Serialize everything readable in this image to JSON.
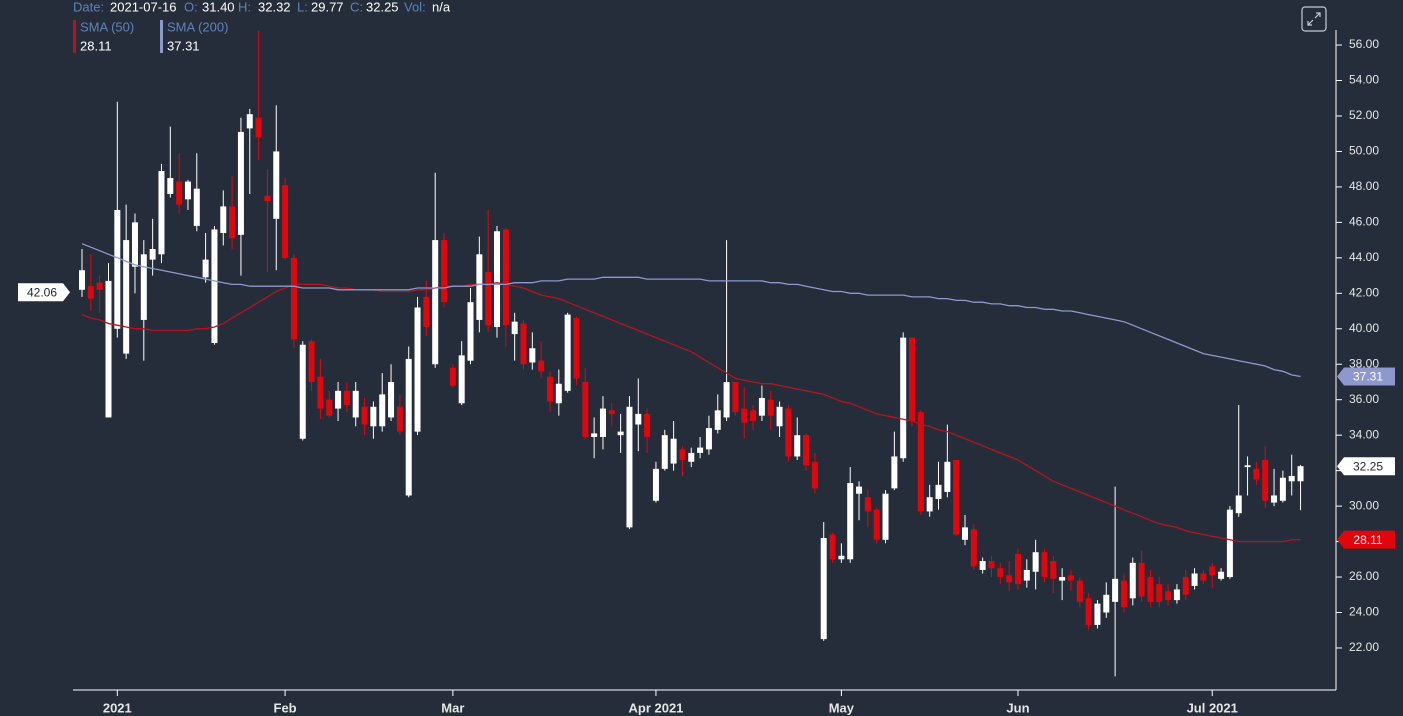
{
  "chart_data": {
    "type": "candlestick",
    "readout": {
      "date_label": "Date:",
      "date": "2021-07-16",
      "open_label": "O:",
      "open": "31.40",
      "high_label": "H:",
      "high": "32.32",
      "low_label": "L:",
      "low": "29.77",
      "close_label": "C:",
      "close": "32.25",
      "vol_label": "Vol:",
      "vol": "n/a"
    },
    "categories": [
      null,
      null,
      null,
      null,
      "2021",
      null,
      null,
      null,
      null,
      null,
      null,
      null,
      null,
      null,
      null,
      null,
      null,
      null,
      null,
      null,
      null,
      null,
      null,
      "Feb",
      null,
      null,
      null,
      null,
      null,
      null,
      null,
      null,
      null,
      null,
      null,
      null,
      null,
      null,
      null,
      null,
      null,
      null,
      "Mar",
      null,
      null,
      null,
      null,
      null,
      null,
      null,
      null,
      null,
      null,
      null,
      null,
      null,
      null,
      null,
      null,
      null,
      null,
      null,
      null,
      null,
      null,
      "Apr 2021",
      null,
      null,
      null,
      null,
      null,
      null,
      null,
      null,
      null,
      null,
      null,
      null,
      null,
      null,
      null,
      null,
      null,
      null,
      null,
      null,
      "May",
      null,
      null,
      null,
      null,
      null,
      null,
      null,
      null,
      null,
      null,
      null,
      null,
      null,
      null,
      null,
      null,
      null,
      null,
      null,
      "Jun",
      null,
      null,
      null,
      null,
      null,
      null,
      null,
      null,
      null,
      null,
      null,
      null,
      null,
      null,
      null,
      null,
      null,
      null,
      null,
      null,
      null,
      "Jul 2021",
      null,
      null,
      null,
      null,
      null,
      null,
      null,
      null,
      null,
      null
    ],
    "open": [
      42.2,
      42.4,
      42.6,
      35.0,
      40.0,
      38.6,
      43.5,
      40.5,
      43.9,
      44.2,
      47.6,
      48.3,
      47.3,
      45.8,
      42.9,
      39.2,
      45.4,
      46.9,
      45.3,
      51.3,
      51.9,
      47.5,
      46.2,
      48.1,
      44.0,
      33.8,
      39.3,
      37.3,
      36.0,
      35.5,
      36.5,
      35.0,
      35.6,
      34.5,
      34.5,
      35.0,
      35.6,
      30.6,
      34.2,
      41.8,
      38.0,
      45.0,
      37.8,
      35.8,
      38.2,
      40.5,
      43.2,
      40.1,
      45.6,
      39.7,
      40.3,
      38.1,
      38.2,
      37.3,
      35.8,
      36.5,
      40.6,
      37.0,
      33.9,
      33.9,
      35.4,
      34.0,
      28.8,
      34.6,
      35.2,
      30.3,
      32.1,
      32.4,
      33.2,
      32.5,
      33.0,
      33.2,
      34.3,
      35.0,
      37.0,
      35.5,
      35.4,
      35.1,
      36.0,
      34.5,
      35.5,
      32.8,
      34.0,
      32.5,
      22.5,
      28.4,
      27.0,
      27.0,
      30.7,
      30.5,
      29.8,
      28.1,
      31.0,
      32.7,
      39.5,
      35.3,
      29.7,
      30.4,
      30.8,
      32.6,
      28.1,
      28.7,
      26.4,
      26.9,
      26.5,
      26.1,
      27.3,
      25.8,
      26.3,
      27.4,
      26.9,
      25.8,
      26.1,
      25.8,
      24.8,
      23.3,
      24.0,
      24.6,
      25.8,
      24.8,
      26.8,
      26.0,
      25.6,
      25.2,
      24.7,
      26.0,
      25.5,
      26.2,
      26.6,
      25.9,
      26.0,
      29.6,
      32.2,
      32.1,
      32.6,
      30.2,
      30.3,
      31.4,
      31.4
    ],
    "high": [
      44.5,
      44.2,
      43.0,
      43.7,
      52.8,
      47.0,
      46.5,
      45.0,
      46.2,
      49.3,
      51.4,
      49.9,
      48.4,
      49.9,
      45.4,
      45.8,
      47.8,
      48.6,
      51.9,
      52.4,
      56.8,
      49.0,
      52.6,
      48.5,
      44.2,
      39.3,
      39.4,
      38.3,
      36.5,
      37.0,
      37.0,
      37.0,
      36.1,
      35.9,
      37.5,
      38.0,
      36.3,
      39.0,
      41.8,
      42.7,
      48.8,
      45.4,
      38.0,
      39.3,
      42.3,
      45.2,
      46.7,
      45.8,
      45.7,
      40.9,
      40.5,
      39.8,
      39.3,
      37.6,
      37.7,
      40.9,
      40.7,
      37.8,
      35.0,
      36.2,
      35.8,
      35.2,
      36.2,
      37.2,
      35.5,
      32.5,
      34.3,
      34.8,
      33.4,
      33.3,
      33.9,
      35.1,
      36.3,
      45.0,
      37.0,
      36.7,
      35.7,
      36.8,
      36.5,
      35.9,
      35.7,
      35.0,
      34.1,
      33.0,
      29.1,
      28.5,
      27.9,
      32.2,
      31.4,
      30.9,
      29.9,
      30.9,
      34.2,
      39.8,
      39.5,
      35.4,
      31.2,
      32.5,
      34.6,
      32.6,
      29.5,
      29.0,
      27.1,
      27.2,
      26.8,
      26.9,
      27.6,
      27.0,
      28.1,
      27.6,
      27.2,
      26.5,
      26.4,
      26.0,
      25.1,
      24.7,
      25.7,
      31.1,
      26.2,
      27.1,
      27.5,
      26.4,
      26.0,
      25.6,
      25.6,
      26.4,
      26.5,
      26.4,
      26.8,
      26.5,
      30.0,
      35.7,
      32.8,
      32.5,
      33.4,
      32.1,
      32.0,
      32.9,
      32.32
    ],
    "low": [
      41.8,
      41.0,
      40.9,
      35.0,
      39.5,
      38.3,
      42.0,
      38.2,
      43.0,
      43.7,
      47.4,
      46.5,
      46.7,
      45.5,
      42.6,
      39.1,
      44.7,
      44.5,
      43.0,
      47.6,
      49.5,
      43.2,
      43.3,
      43.9,
      38.9,
      33.7,
      36.5,
      34.9,
      35.0,
      34.8,
      35.3,
      34.5,
      34.0,
      33.8,
      34.2,
      34.8,
      34.0,
      30.5,
      34.0,
      39.6,
      37.8,
      41.2,
      36.7,
      35.7,
      38.0,
      39.8,
      39.8,
      39.5,
      39.0,
      38.2,
      37.7,
      37.7,
      37.2,
      35.3,
      35.1,
      36.4,
      36.8,
      33.8,
      32.7,
      33.2,
      34.5,
      33.0,
      28.7,
      33.1,
      33.0,
      30.2,
      32.0,
      32.0,
      31.7,
      32.2,
      32.7,
      32.9,
      34.1,
      34.8,
      35.1,
      33.8,
      34.3,
      34.8,
      34.3,
      33.9,
      32.5,
      32.6,
      32.0,
      30.7,
      22.4,
      26.8,
      26.8,
      26.8,
      29.2,
      28.8,
      27.9,
      27.9,
      30.9,
      32.5,
      34.5,
      29.5,
      29.4,
      29.8,
      30.5,
      28.3,
      27.8,
      26.4,
      26.2,
      26.0,
      25.6,
      25.2,
      25.3,
      25.4,
      25.3,
      25.7,
      25.1,
      24.7,
      25.2,
      24.3,
      23.0,
      23.1,
      23.7,
      20.4,
      24.0,
      24.4,
      24.6,
      24.3,
      24.3,
      24.4,
      24.5,
      24.7,
      25.3,
      25.6,
      25.4,
      25.8,
      25.9,
      29.4,
      30.6,
      31.2,
      29.9,
      30.0,
      30.2,
      30.6,
      29.77
    ],
    "close": [
      43.3,
      41.7,
      42.2,
      42.7,
      46.7,
      45.0,
      46.0,
      44.2,
      44.5,
      48.9,
      48.5,
      47.0,
      48.3,
      47.9,
      43.9,
      45.6,
      46.9,
      45.1,
      51.1,
      52.1,
      50.8,
      47.2,
      50.0,
      44.0,
      39.4,
      39.1,
      37.0,
      35.5,
      35.1,
      36.5,
      35.7,
      36.5,
      34.6,
      35.6,
      36.3,
      37.0,
      34.2,
      38.3,
      41.2,
      40.1,
      45.0,
      41.5,
      36.8,
      38.5,
      41.5,
      44.2,
      40.2,
      45.5,
      40.2,
      40.4,
      38.0,
      38.9,
      37.6,
      35.9,
      36.9,
      40.8,
      37.2,
      33.9,
      34.1,
      35.5,
      35.2,
      34.2,
      35.6,
      35.2,
      33.9,
      32.1,
      34.0,
      33.8,
      32.6,
      33.0,
      33.3,
      34.4,
      35.4,
      37.0,
      35.3,
      34.7,
      34.8,
      36.1,
      35.1,
      35.6,
      32.8,
      34.0,
      32.3,
      31.0,
      28.2,
      27.0,
      27.2,
      31.3,
      31.1,
      29.7,
      28.1,
      30.7,
      32.8,
      39.5,
      34.8,
      29.7,
      30.5,
      31.2,
      32.5,
      28.4,
      28.8,
      26.6,
      26.9,
      26.5,
      26.0,
      25.7,
      25.6,
      26.4,
      27.4,
      26.0,
      25.9,
      26.0,
      25.8,
      24.6,
      23.3,
      24.5,
      25.0,
      25.9,
      24.3,
      26.8,
      24.9,
      24.6,
      24.6,
      24.7,
      25.3,
      25.0,
      26.2,
      25.8,
      26.1,
      26.3,
      29.8,
      30.6,
      32.3,
      31.5,
      30.3,
      30.6,
      31.6,
      31.7,
      32.25
    ],
    "up_color": "#ffffff",
    "down_color": "#e0060e",
    "series": [
      {
        "name": "SMA (50)",
        "color": "#b5141c",
        "values": [
          40.8,
          40.6,
          40.5,
          40.3,
          40.2,
          40.1,
          40.0,
          40.0,
          39.9,
          39.9,
          39.9,
          39.9,
          39.9,
          40.0,
          40.0,
          40.1,
          40.3,
          40.6,
          40.9,
          41.2,
          41.5,
          41.8,
          42.1,
          42.3,
          42.5,
          42.5,
          42.5,
          42.5,
          42.4,
          42.3,
          42.3,
          42.2,
          42.2,
          42.2,
          42.1,
          42.1,
          42.1,
          42.1,
          42.2,
          42.2,
          42.3,
          42.4,
          42.4,
          42.4,
          42.5,
          42.5,
          42.5,
          42.6,
          42.5,
          42.4,
          42.3,
          42.1,
          41.9,
          41.8,
          41.7,
          41.5,
          41.3,
          41.1,
          40.9,
          40.7,
          40.5,
          40.3,
          40.1,
          39.9,
          39.7,
          39.5,
          39.3,
          39.1,
          38.9,
          38.7,
          38.4,
          38.1,
          37.8,
          37.5,
          37.2,
          37.1,
          37.0,
          36.9,
          36.9,
          36.8,
          36.7,
          36.6,
          36.5,
          36.4,
          36.3,
          36.1,
          35.9,
          35.8,
          35.6,
          35.4,
          35.2,
          35.1,
          35.0,
          34.9,
          34.8,
          34.6,
          34.5,
          34.3,
          34.2,
          34.0,
          33.8,
          33.6,
          33.4,
          33.2,
          33.0,
          32.8,
          32.6,
          32.3,
          32.0,
          31.7,
          31.4,
          31.2,
          31.0,
          30.8,
          30.6,
          30.4,
          30.2,
          30.0,
          29.8,
          29.6,
          29.4,
          29.2,
          29.0,
          28.9,
          28.8,
          28.6,
          28.5,
          28.4,
          28.3,
          28.2,
          28.1,
          28.0,
          28.0,
          28.0,
          28.0,
          28.0,
          28.0,
          28.1,
          28.11
        ]
      },
      {
        "name": "SMA (200)",
        "color": "#8e98cc",
        "values": [
          44.8,
          44.6,
          44.4,
          44.2,
          44.0,
          43.8,
          43.6,
          43.5,
          43.4,
          43.3,
          43.2,
          43.1,
          43.0,
          42.9,
          42.8,
          42.7,
          42.6,
          42.5,
          42.5,
          42.4,
          42.4,
          42.4,
          42.4,
          42.4,
          42.4,
          42.3,
          42.3,
          42.3,
          42.3,
          42.2,
          42.2,
          42.2,
          42.2,
          42.2,
          42.2,
          42.2,
          42.2,
          42.2,
          42.3,
          42.3,
          42.3,
          42.3,
          42.4,
          42.4,
          42.4,
          42.5,
          42.5,
          42.5,
          42.5,
          42.6,
          42.6,
          42.6,
          42.7,
          42.7,
          42.7,
          42.8,
          42.8,
          42.8,
          42.8,
          42.9,
          42.9,
          42.9,
          42.9,
          42.9,
          42.8,
          42.8,
          42.8,
          42.8,
          42.8,
          42.8,
          42.8,
          42.7,
          42.7,
          42.7,
          42.7,
          42.7,
          42.7,
          42.7,
          42.6,
          42.6,
          42.5,
          42.5,
          42.4,
          42.3,
          42.2,
          42.1,
          42.1,
          42.0,
          42.0,
          41.9,
          41.9,
          41.9,
          41.9,
          41.9,
          41.8,
          41.8,
          41.8,
          41.7,
          41.7,
          41.6,
          41.6,
          41.5,
          41.5,
          41.4,
          41.4,
          41.3,
          41.3,
          41.2,
          41.2,
          41.1,
          41.1,
          41.0,
          41.0,
          40.9,
          40.8,
          40.7,
          40.6,
          40.5,
          40.4,
          40.2,
          40.0,
          39.8,
          39.6,
          39.4,
          39.2,
          39.0,
          38.8,
          38.6,
          38.5,
          38.4,
          38.3,
          38.2,
          38.1,
          38.0,
          37.9,
          37.7,
          37.6,
          37.4,
          37.31
        ]
      }
    ],
    "left_marker": 42.06,
    "ylim": [
      19.63,
      58.54
    ],
    "yticks": [
      {
        "value": 22,
        "label": "22.00"
      },
      {
        "value": 24,
        "label": "24.00"
      },
      {
        "value": 26,
        "label": "26.00"
      },
      {
        "value": 28,
        "label": "28.00"
      },
      {
        "value": 30,
        "label": "30.00"
      },
      {
        "value": 32,
        "label": "32.00"
      },
      {
        "value": 34,
        "label": "34.00"
      },
      {
        "value": 36,
        "label": "36.00"
      },
      {
        "value": 38,
        "label": "38.00"
      },
      {
        "value": 40,
        "label": "40.00"
      },
      {
        "value": 42,
        "label": "42.00"
      },
      {
        "value": 44,
        "label": "44.00"
      },
      {
        "value": 46,
        "label": "46.00"
      },
      {
        "value": 48,
        "label": "48.00"
      },
      {
        "value": 50,
        "label": "50.00"
      },
      {
        "value": 52,
        "label": "52.00"
      },
      {
        "value": 54,
        "label": "54.00"
      },
      {
        "value": 56,
        "label": "56.00"
      }
    ],
    "grid": false
  }
}
